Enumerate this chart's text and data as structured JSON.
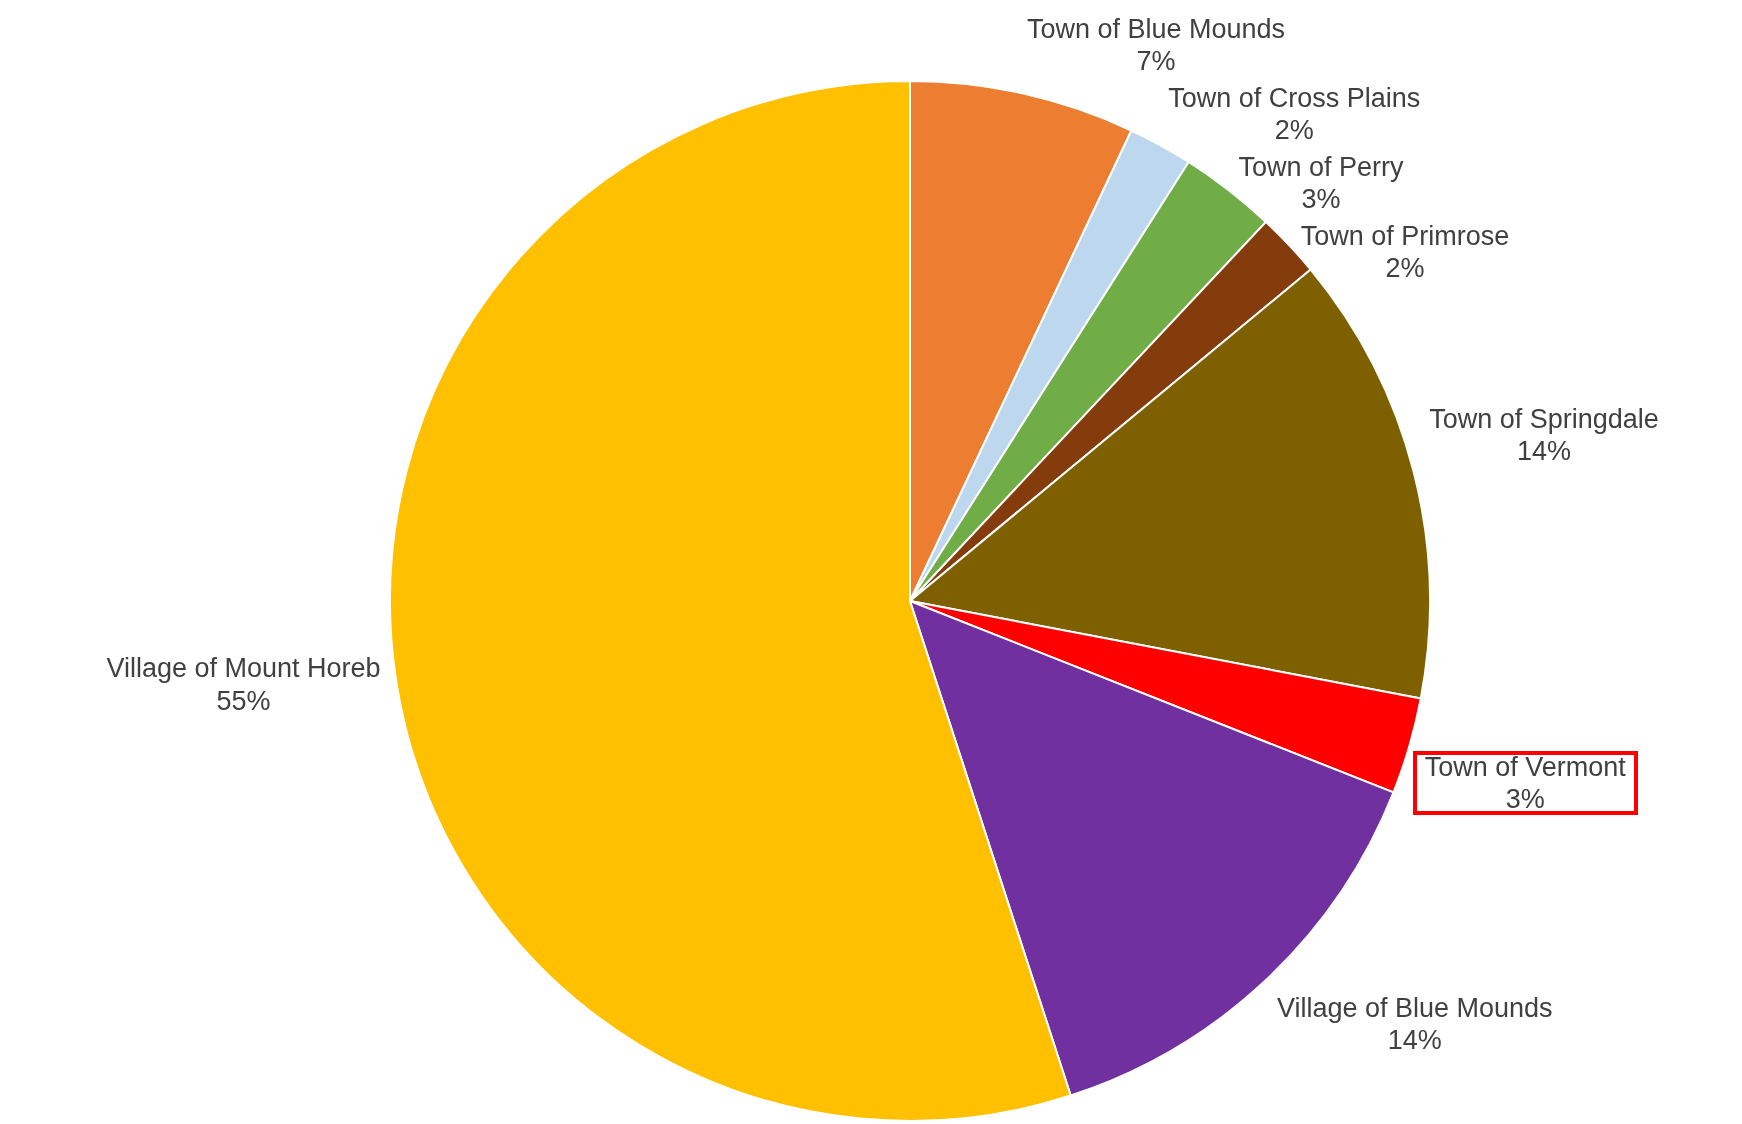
{
  "chart_data": {
    "type": "pie",
    "categories": [
      "Town of Blue Mounds",
      "Town of Cross Plains",
      "Town of Perry",
      "Town of Primrose",
      "Town of Springdale",
      "Town of Vermont",
      "Village of Blue Mounds",
      "Village of Mount Horeb"
    ],
    "values": [
      7,
      2,
      3,
      2,
      14,
      3,
      14,
      55
    ],
    "value_labels": [
      "7%",
      "2%",
      "3%",
      "2%",
      "14%",
      "3%",
      "14%",
      "55%"
    ],
    "colors": [
      "#ed7d31",
      "#bdd7ee",
      "#70ad47",
      "#843c0c",
      "#7f6000",
      "#ff0000",
      "#7030a0",
      "#ffc000"
    ],
    "legend": false
  }
}
